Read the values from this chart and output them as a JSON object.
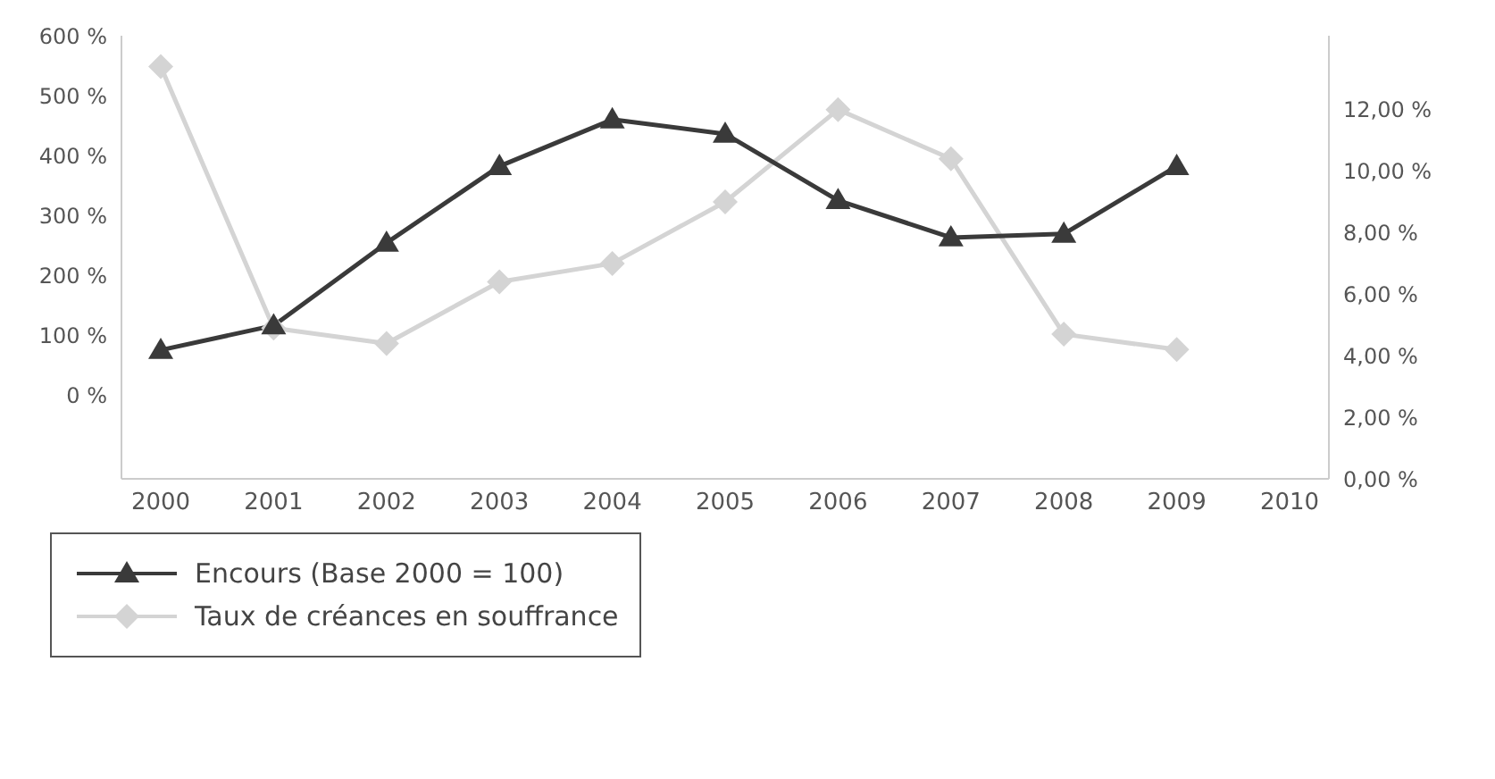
{
  "chart_data": {
    "type": "line",
    "categories": [
      "2000",
      "2001",
      "2002",
      "2003",
      "2004",
      "2005",
      "2006",
      "2007",
      "2008",
      "2009",
      "2010"
    ],
    "series": [
      {
        "name": "Encours (Base 2000 = 100)",
        "color": "#3a3a3a",
        "marker": "triangle",
        "values": [
          75,
          116,
          254,
          382,
          460,
          436,
          325,
          263,
          269,
          382,
          null
        ]
      },
      {
        "name": "Taux de créances en souffrance",
        "color": "#d4d4d4",
        "marker": "diamond",
        "axis": "y2",
        "values": [
          13.4,
          4.9,
          4.4,
          6.4,
          7.0,
          9.0,
          12.0,
          10.4,
          4.7,
          4.2,
          null
        ]
      }
    ],
    "ylim": [
      -140,
      600
    ],
    "yticks": [
      {
        "value": 0,
        "label": "0 %"
      },
      {
        "value": 100,
        "label": "100 %"
      },
      {
        "value": 200,
        "label": "200 %"
      },
      {
        "value": 300,
        "label": "300 %"
      },
      {
        "value": 400,
        "label": "400 %"
      },
      {
        "value": 500,
        "label": "500 %"
      },
      {
        "value": 600,
        "label": "600 %"
      }
    ],
    "y2lim": [
      0,
      14.4
    ],
    "y2ticks": [
      {
        "value": 0,
        "label": "0,00 %"
      },
      {
        "value": 2,
        "label": "2,00 %"
      },
      {
        "value": 4,
        "label": "4,00 %"
      },
      {
        "value": 6,
        "label": "6,00 %"
      },
      {
        "value": 8,
        "label": "8,00 %"
      },
      {
        "value": 10,
        "label": "10,00 %"
      },
      {
        "value": 12,
        "label": "12,00 %"
      }
    ],
    "grid": false,
    "legend": "bottom left"
  }
}
